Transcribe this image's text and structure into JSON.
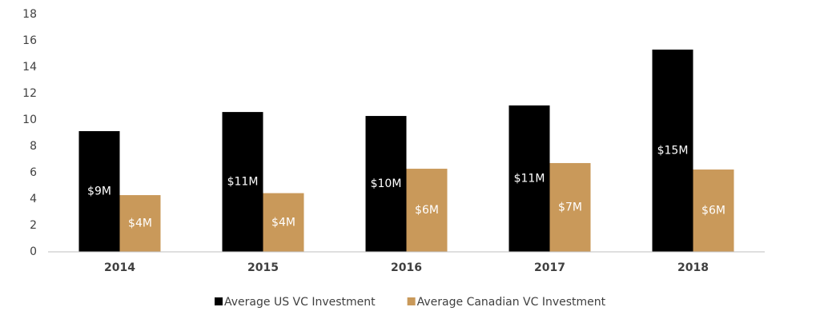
{
  "chart_data": {
    "type": "bar",
    "categories": [
      "2014",
      "2015",
      "2016",
      "2017",
      "2018"
    ],
    "series": [
      {
        "name": "Average US VC Investment",
        "color": "#000000",
        "values": [
          9.15,
          10.6,
          10.3,
          11.1,
          15.33
        ],
        "value_labels": [
          "$9M",
          "$11M",
          "$10M",
          "$11M",
          "$15M"
        ]
      },
      {
        "name": "Average Canadian VC Investment",
        "color": "#c9995a",
        "values": [
          4.3,
          4.45,
          6.3,
          6.73,
          6.24
        ],
        "value_labels": [
          "$4M",
          "$4M",
          "$6M",
          "$7M",
          "$6M"
        ]
      }
    ],
    "ylim": [
      0,
      18
    ],
    "yticks": [
      0,
      2,
      4,
      6,
      8,
      10,
      12,
      14,
      16,
      18
    ],
    "grid": false,
    "legend": "bottom"
  }
}
